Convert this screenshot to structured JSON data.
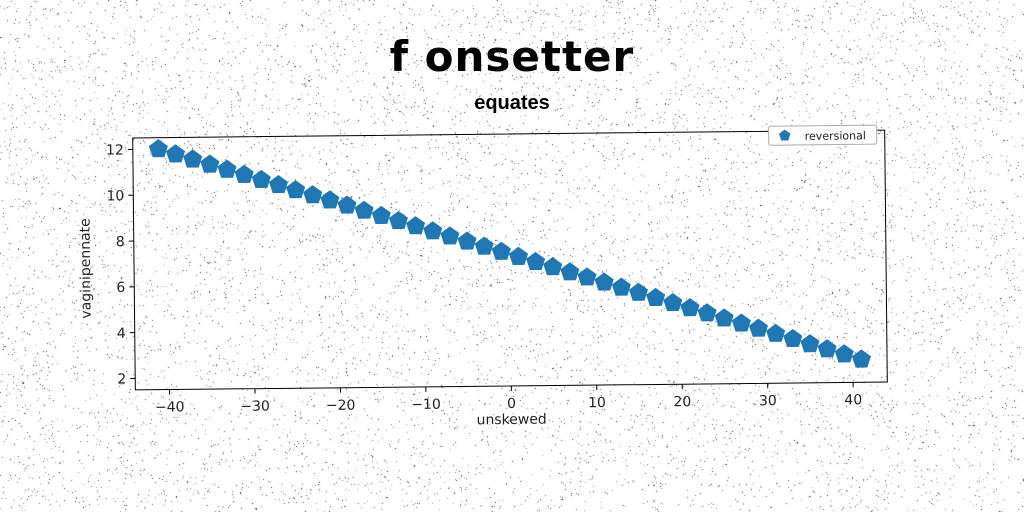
{
  "title": "f onsetter",
  "subtitle": "equates",
  "chart_data": {
    "type": "scatter",
    "xlabel": "unskewed",
    "ylabel": "vaginipennate",
    "xlim": [
      -44,
      44
    ],
    "ylim": [
      1.5,
      12.5
    ],
    "xticks": [
      -40,
      -30,
      -20,
      -10,
      0,
      10,
      20,
      30,
      40
    ],
    "yticks": [
      2,
      4,
      6,
      8,
      10,
      12
    ],
    "legend_position": "top-right",
    "grid": false,
    "series": [
      {
        "name": "reversional",
        "marker": "pentagon",
        "color": "#1f77b4",
        "x_start": -41,
        "x_end": 41,
        "x_step": 2,
        "y_start": 12.0,
        "y_end": 2.5
      }
    ]
  }
}
